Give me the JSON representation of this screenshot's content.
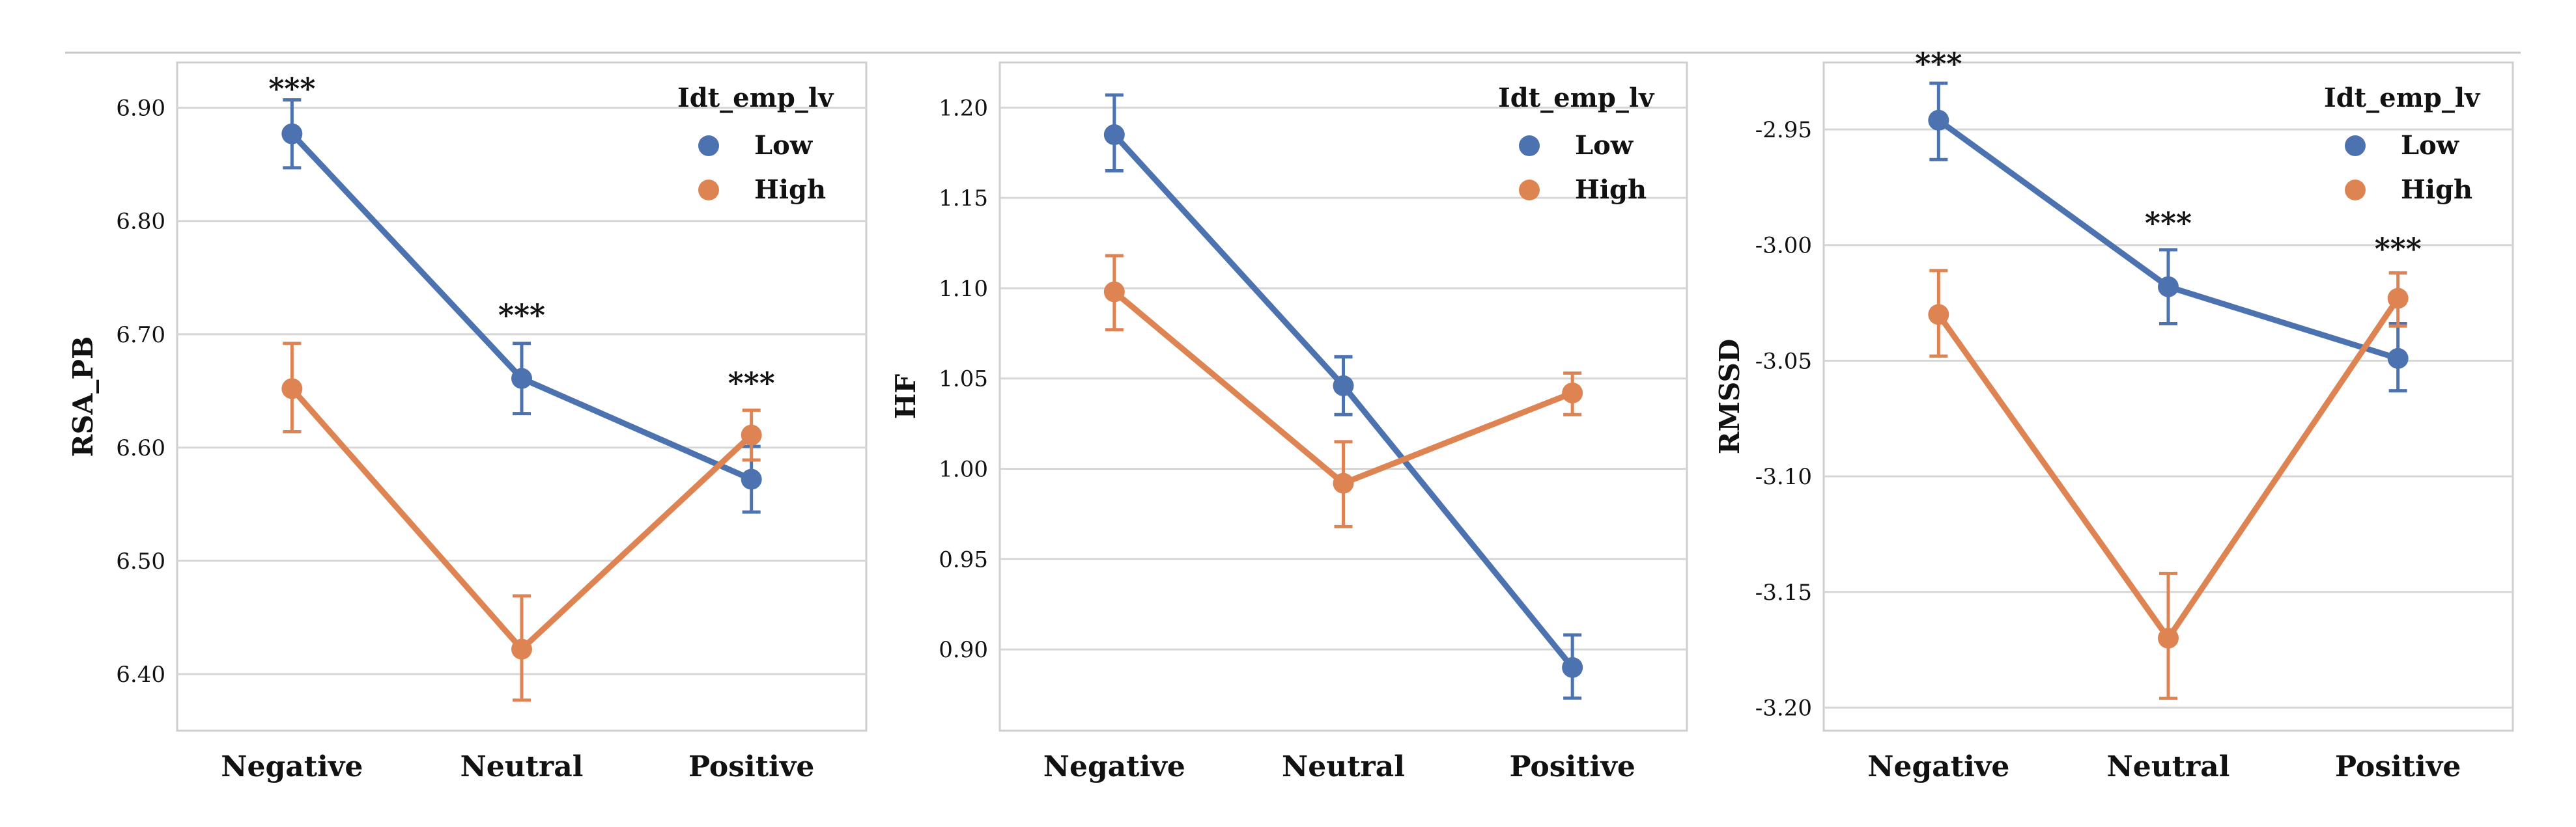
{
  "colors": {
    "low": "#4c72b0",
    "high": "#dd8452",
    "grid": "#d6d6d6",
    "frame": "#cfcfcf",
    "text": "#111111"
  },
  "chart_data": [
    {
      "type": "line",
      "ylabel": "RSA_PB",
      "categories": [
        "Negative",
        "Neutral",
        "Positive"
      ],
      "ylim": [
        6.35,
        6.94
      ],
      "yticks": [
        6.4,
        6.5,
        6.6,
        6.7,
        6.8,
        6.9
      ],
      "ytick_labels": [
        "6.40",
        "6.50",
        "6.60",
        "6.70",
        "6.80",
        "6.90"
      ],
      "legend": {
        "title": "Idt_emp_lv",
        "position": "top-right"
      },
      "series": [
        {
          "name": "Low",
          "color_key": "low",
          "values": [
            6.877,
            6.661,
            6.572
          ],
          "err_low": [
            6.847,
            6.63,
            6.543
          ],
          "err_high": [
            6.907,
            6.692,
            6.601
          ]
        },
        {
          "name": "High",
          "color_key": "high",
          "values": [
            6.652,
            6.422,
            6.611
          ],
          "err_low": [
            6.614,
            6.377,
            6.589
          ],
          "err_high": [
            6.692,
            6.469,
            6.633
          ]
        }
      ],
      "significance": [
        {
          "category": "Negative",
          "label": "***",
          "y": 6.918
        },
        {
          "category": "Neutral",
          "label": "***",
          "y": 6.718
        },
        {
          "category": "Positive",
          "label": "***",
          "y": 6.658
        }
      ]
    },
    {
      "type": "line",
      "ylabel": "HF",
      "categories": [
        "Negative",
        "Neutral",
        "Positive"
      ],
      "ylim": [
        0.855,
        1.225
      ],
      "yticks": [
        0.9,
        0.95,
        1.0,
        1.05,
        1.1,
        1.15,
        1.2
      ],
      "ytick_labels": [
        "0.90",
        "0.95",
        "1.00",
        "1.05",
        "1.10",
        "1.15",
        "1.20"
      ],
      "legend": {
        "title": "Idt_emp_lv",
        "position": "top-right"
      },
      "series": [
        {
          "name": "Low",
          "color_key": "low",
          "values": [
            1.185,
            1.046,
            0.89
          ],
          "err_low": [
            1.165,
            1.03,
            0.873
          ],
          "err_high": [
            1.207,
            1.062,
            0.908
          ]
        },
        {
          "name": "High",
          "color_key": "high",
          "values": [
            1.098,
            0.992,
            1.042
          ],
          "err_low": [
            1.077,
            0.968,
            1.03
          ],
          "err_high": [
            1.118,
            1.015,
            1.053
          ]
        }
      ],
      "significance": []
    },
    {
      "type": "line",
      "ylabel": "RMSSD",
      "categories": [
        "Negative",
        "Neutral",
        "Positive"
      ],
      "ylim": [
        -3.21,
        -2.921
      ],
      "yticks": [
        -3.2,
        -3.15,
        -3.1,
        -3.05,
        -3.0,
        -2.95
      ],
      "ytick_labels": [
        "-3.20",
        "-3.15",
        "-3.10",
        "-3.05",
        "-3.00",
        "-2.95"
      ],
      "legend": {
        "title": "Idt_emp_lv",
        "position": "top-right"
      },
      "series": [
        {
          "name": "Low",
          "color_key": "low",
          "values": [
            -2.946,
            -3.018,
            -3.049
          ],
          "err_low": [
            -2.963,
            -3.034,
            -3.063
          ],
          "err_high": [
            -2.93,
            -3.002,
            -3.034
          ]
        },
        {
          "name": "High",
          "color_key": "high",
          "values": [
            -3.03,
            -3.17,
            -3.023
          ],
          "err_low": [
            -3.048,
            -3.196,
            -3.035
          ],
          "err_high": [
            -3.011,
            -3.142,
            -3.012
          ]
        }
      ],
      "significance": [
        {
          "category": "Negative",
          "label": "***",
          "y": -2.921
        },
        {
          "category": "Neutral",
          "label": "***",
          "y": -2.99
        },
        {
          "category": "Positive",
          "label": "***",
          "y": -3.001
        }
      ]
    }
  ]
}
